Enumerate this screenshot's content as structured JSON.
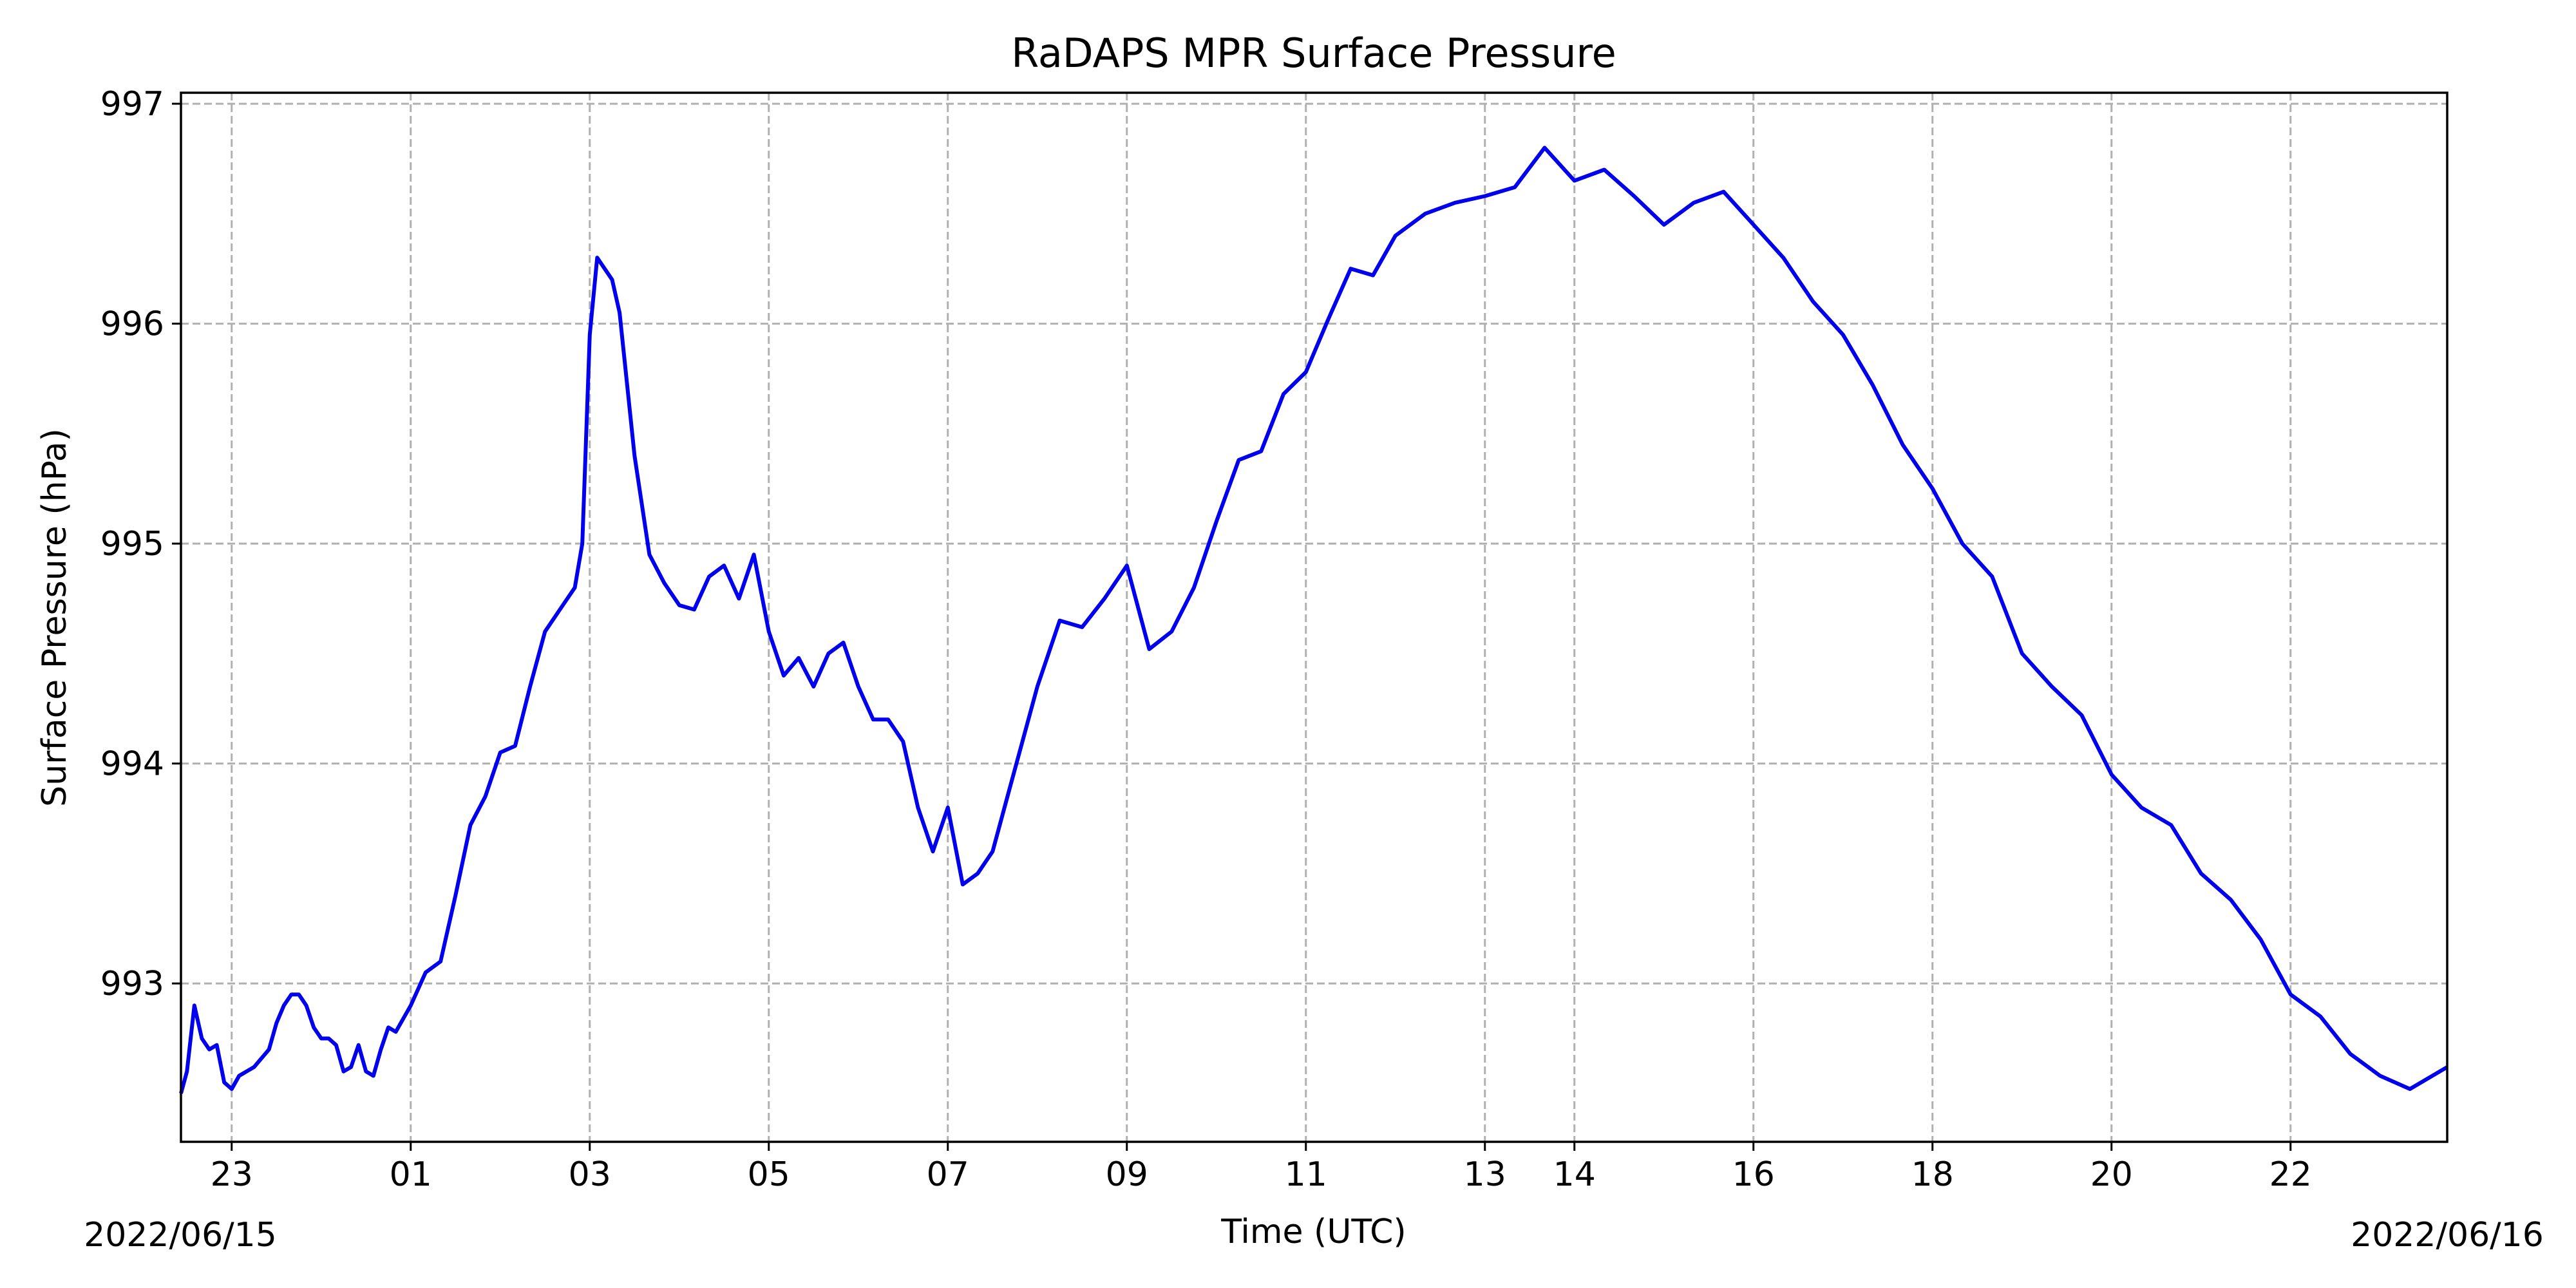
{
  "chart_data": {
    "type": "line",
    "title": "RaDAPS MPR Surface Pressure",
    "xlabel": "Time (UTC)",
    "ylabel": "Surface Pressure (hPa)",
    "start_date_label": "2022/06/15",
    "end_date_label": "2022/06/16",
    "ylim": [
      992.28,
      997.05
    ],
    "yticks": [
      "997",
      "996",
      "995",
      "994",
      "993"
    ],
    "xticks": [
      "23",
      "01",
      "03",
      "05",
      "07",
      "09",
      "11",
      "13",
      "14",
      "16",
      "18",
      "20",
      "22"
    ],
    "grid": true,
    "line_color": "#0000ee",
    "series": [
      {
        "x": [
          "2022-06-15 22:26",
          "2022-06-15 22:30",
          "2022-06-15 22:35",
          "2022-06-15 22:40",
          "2022-06-15 22:45",
          "2022-06-15 22:50",
          "2022-06-15 22:55",
          "2022-06-15 23:00",
          "2022-06-15 23:05",
          "2022-06-15 23:15",
          "2022-06-15 23:25",
          "2022-06-15 23:30",
          "2022-06-15 23:35",
          "2022-06-15 23:40",
          "2022-06-15 23:45",
          "2022-06-15 23:50",
          "2022-06-15 23:55",
          "2022-06-16 00:00",
          "2022-06-16 00:05",
          "2022-06-16 00:10",
          "2022-06-16 00:15",
          "2022-06-16 00:20",
          "2022-06-16 00:25",
          "2022-06-16 00:30",
          "2022-06-16 00:35",
          "2022-06-16 00:40",
          "2022-06-16 00:45",
          "2022-06-16 00:50",
          "2022-06-16 01:00",
          "2022-06-16 01:10",
          "2022-06-16 01:20",
          "2022-06-16 01:30",
          "2022-06-16 01:40",
          "2022-06-16 01:50",
          "2022-06-16 02:00",
          "2022-06-16 02:10",
          "2022-06-16 02:20",
          "2022-06-16 02:30",
          "2022-06-16 02:40",
          "2022-06-16 02:50",
          "2022-06-16 02:55",
          "2022-06-16 03:00",
          "2022-06-16 03:05",
          "2022-06-16 03:10",
          "2022-06-16 03:15",
          "2022-06-16 03:20",
          "2022-06-16 03:30",
          "2022-06-16 03:40",
          "2022-06-16 03:50",
          "2022-06-16 04:00",
          "2022-06-16 04:10",
          "2022-06-16 04:20",
          "2022-06-16 04:30",
          "2022-06-16 04:40",
          "2022-06-16 04:50",
          "2022-06-16 05:00",
          "2022-06-16 05:10",
          "2022-06-16 05:20",
          "2022-06-16 05:30",
          "2022-06-16 05:40",
          "2022-06-16 05:50",
          "2022-06-16 06:00",
          "2022-06-16 06:10",
          "2022-06-16 06:20",
          "2022-06-16 06:30",
          "2022-06-16 06:40",
          "2022-06-16 06:50",
          "2022-06-16 07:00",
          "2022-06-16 07:10",
          "2022-06-16 07:20",
          "2022-06-16 07:30",
          "2022-06-16 07:40",
          "2022-06-16 07:50",
          "2022-06-16 08:00",
          "2022-06-16 08:15",
          "2022-06-16 08:30",
          "2022-06-16 08:45",
          "2022-06-16 09:00",
          "2022-06-16 09:15",
          "2022-06-16 09:30",
          "2022-06-16 09:45",
          "2022-06-16 10:00",
          "2022-06-16 10:15",
          "2022-06-16 10:30",
          "2022-06-16 10:45",
          "2022-06-16 11:00",
          "2022-06-16 11:15",
          "2022-06-16 11:30",
          "2022-06-16 11:45",
          "2022-06-16 12:00",
          "2022-06-16 12:20",
          "2022-06-16 12:40",
          "2022-06-16 13:00",
          "2022-06-16 13:20",
          "2022-06-16 13:40",
          "2022-06-16 14:00",
          "2022-06-16 14:20",
          "2022-06-16 14:40",
          "2022-06-16 15:00",
          "2022-06-16 15:20",
          "2022-06-16 15:40",
          "2022-06-16 16:00",
          "2022-06-16 16:20",
          "2022-06-16 16:40",
          "2022-06-16 17:00",
          "2022-06-16 17:20",
          "2022-06-16 17:40",
          "2022-06-16 18:00",
          "2022-06-16 18:20",
          "2022-06-16 18:40",
          "2022-06-16 19:00",
          "2022-06-16 19:20",
          "2022-06-16 19:40",
          "2022-06-16 20:00",
          "2022-06-16 20:20",
          "2022-06-16 20:40",
          "2022-06-16 21:00",
          "2022-06-16 21:20",
          "2022-06-16 21:40",
          "2022-06-16 22:00",
          "2022-06-16 22:20",
          "2022-06-16 22:40",
          "2022-06-16 23:00",
          "2022-06-16 23:20",
          "2022-06-16 23:45"
        ],
        "values": [
          992.5,
          992.6,
          992.9,
          992.75,
          992.7,
          992.72,
          992.55,
          992.52,
          992.58,
          992.62,
          992.7,
          992.82,
          992.9,
          992.95,
          992.95,
          992.9,
          992.8,
          992.75,
          992.75,
          992.72,
          992.6,
          992.62,
          992.72,
          992.6,
          992.58,
          992.7,
          992.8,
          992.78,
          992.9,
          993.05,
          993.1,
          993.4,
          993.72,
          993.85,
          994.05,
          994.08,
          994.35,
          994.6,
          994.7,
          994.8,
          995.0,
          995.95,
          996.3,
          996.25,
          996.2,
          996.05,
          995.4,
          994.95,
          994.82,
          994.72,
          994.7,
          994.85,
          994.9,
          994.75,
          994.95,
          994.6,
          994.4,
          994.48,
          994.35,
          994.5,
          994.55,
          994.35,
          994.2,
          994.2,
          994.1,
          993.8,
          993.6,
          993.8,
          993.45,
          993.5,
          993.6,
          993.85,
          994.1,
          994.35,
          994.65,
          994.62,
          994.75,
          994.9,
          994.52,
          994.6,
          994.8,
          995.1,
          995.38,
          995.42,
          995.68,
          995.78,
          996.02,
          996.25,
          996.22,
          996.4,
          996.5,
          996.55,
          996.58,
          996.62,
          996.8,
          996.65,
          996.7,
          996.58,
          996.45,
          996.55,
          996.6,
          996.45,
          996.3,
          996.1,
          995.95,
          995.72,
          995.45,
          995.25,
          995.0,
          994.85,
          994.5,
          994.35,
          994.22,
          993.95,
          993.8,
          993.72,
          993.5,
          993.38,
          993.2,
          992.95,
          992.85,
          992.68,
          992.58,
          992.52,
          992.62
        ]
      }
    ]
  }
}
